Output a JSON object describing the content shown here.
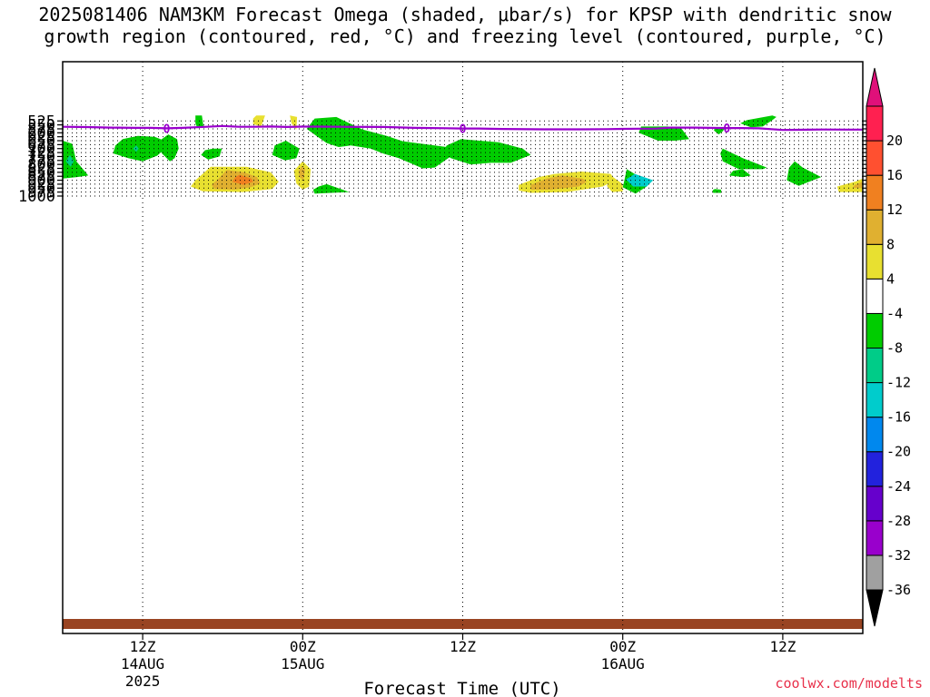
{
  "title": {
    "line1": "2025081406 NAM3KM Forecast Omega (shaded, μbar/s) for KPSP with dendritic snow",
    "line2": "growth region (contoured, red, °C) and freezing level (contoured, purple, °C)"
  },
  "credit": "coolwx.com/modelts",
  "chart_data": {
    "type": "heatmap",
    "xlabel": "Forecast Time (UTC)",
    "ylabel": "",
    "y_scale": "pressure (hPa), reversed",
    "y_ticks": [
      525,
      550,
      575,
      600,
      625,
      650,
      675,
      700,
      725,
      750,
      775,
      800,
      825,
      850,
      875,
      900,
      925,
      950,
      975,
      1000
    ],
    "x_hours_range": [
      -10,
      90
    ],
    "x_ticks": [
      {
        "hour": 0,
        "label": "12Z",
        "sublabel": "14AUG",
        "year": "2025"
      },
      {
        "hour": 20,
        "label": "00Z",
        "sublabel": "15AUG",
        "year": ""
      },
      {
        "hour": 40,
        "label": "12Z",
        "sublabel": "",
        "year": ""
      },
      {
        "hour": 60,
        "label": "00Z",
        "sublabel": "16AUG",
        "year": ""
      },
      {
        "hour": 80,
        "label": "12Z",
        "sublabel": "",
        "year": ""
      }
    ],
    "grid": true,
    "colorbar": {
      "position": "right",
      "boundaries": [
        -36,
        -32,
        -28,
        -24,
        -20,
        -16,
        -12,
        -8,
        -4,
        4,
        8,
        12,
        16,
        20
      ],
      "colors": [
        "#a0a0a0",
        "#9900cc",
        "#6600cc",
        "#2222dd",
        "#0088ee",
        "#00cccc",
        "#00cc88",
        "#00cc00",
        "#ffffff",
        "#e8e030",
        "#e0b030",
        "#f08020",
        "#ff5030",
        "#ff2050"
      ],
      "under_color": "#000000",
      "over_color": "#e0107a"
    },
    "freezing_level": {
      "label": "0",
      "color": "#9900cc",
      "x": [
        -10,
        -7,
        -4,
        -1,
        1,
        3,
        5,
        8,
        10,
        12,
        14,
        16,
        18,
        20,
        22,
        25,
        30,
        34,
        38,
        40,
        42,
        45,
        50,
        55,
        58,
        60,
        62,
        64,
        66,
        69,
        71,
        73,
        75,
        77,
        80,
        82,
        85,
        88,
        90
      ],
      "pressure": [
        562,
        564,
        567,
        569,
        569,
        572,
        569,
        562,
        557,
        562,
        562,
        560,
        563,
        561,
        561,
        562,
        563,
        569,
        571,
        573,
        573,
        576,
        578,
        578,
        577,
        575,
        574,
        574,
        567,
        567,
        569,
        570,
        570,
        572,
        582,
        581,
        579,
        580,
        580
      ]
    },
    "omega_regions": [
      {
        "value_range": [
          -8,
          -4
        ],
        "outline": [
          [
            6.6,
            490
          ],
          [
            7.4,
            490
          ],
          [
            7.6,
            562
          ],
          [
            6.8,
            566
          ],
          [
            6.6,
            540
          ]
        ]
      },
      {
        "value_range": [
          -8,
          -4
        ],
        "outline": [
          [
            24.2,
            500
          ],
          [
            27.5,
            580
          ],
          [
            30.5,
            620
          ],
          [
            32.5,
            653
          ],
          [
            38,
            690
          ],
          [
            38.5,
            750
          ],
          [
            36.5,
            820
          ],
          [
            35,
            825
          ],
          [
            32,
            760
          ],
          [
            30,
            730
          ],
          [
            28.5,
            700
          ],
          [
            26,
            680
          ],
          [
            24.5,
            690
          ],
          [
            23,
            665
          ],
          [
            22,
            630
          ],
          [
            20.5,
            575
          ],
          [
            21.5,
            510
          ]
        ]
      },
      {
        "value_range": [
          -8,
          -4
        ],
        "outline": [
          [
            -0.6,
            620
          ],
          [
            1.5,
            625
          ],
          [
            2.5,
            645
          ],
          [
            2.8,
            700
          ],
          [
            1.8,
            745
          ],
          [
            0,
            780
          ],
          [
            -1.8,
            760
          ],
          [
            -3.7,
            730
          ],
          [
            -3.4,
            680
          ],
          [
            -2.5,
            640
          ]
        ]
      },
      {
        "value_range": [
          -8,
          -4
        ],
        "outline": [
          [
            3.2,
            610
          ],
          [
            4.3,
            640
          ],
          [
            4.5,
            700
          ],
          [
            4.0,
            760
          ],
          [
            3.4,
            780
          ],
          [
            2.4,
            730
          ],
          [
            2.0,
            680
          ],
          [
            2.4,
            640
          ]
        ]
      },
      {
        "value_range": [
          -8,
          -4
        ],
        "outline": [
          [
            -10,
            650
          ],
          [
            -8.8,
            670
          ],
          [
            -8.3,
            780
          ],
          [
            -7.8,
            810
          ],
          [
            -6.8,
            870
          ],
          [
            -8.2,
            880
          ],
          [
            -10,
            890
          ]
        ]
      },
      {
        "value_range": [
          -8,
          -4
        ],
        "outline": [
          [
            8.8,
            700
          ],
          [
            9.9,
            700
          ],
          [
            9.6,
            750
          ],
          [
            8.2,
            770
          ],
          [
            7.3,
            740
          ],
          [
            7.8,
            710
          ]
        ]
      },
      {
        "value_range": [
          -8,
          -4
        ],
        "outline": [
          [
            17.9,
            650
          ],
          [
            19.6,
            700
          ],
          [
            19.2,
            760
          ],
          [
            17.8,
            775
          ],
          [
            16.2,
            740
          ],
          [
            16.5,
            680
          ]
        ]
      },
      {
        "value_range": [
          -8,
          -4
        ],
        "outline": [
          [
            39.8,
            640
          ],
          [
            44.5,
            660
          ],
          [
            47.5,
            700
          ],
          [
            48.5,
            740
          ],
          [
            46,
            790
          ],
          [
            43.5,
            790
          ],
          [
            41,
            800
          ],
          [
            38.5,
            760
          ],
          [
            37.5,
            720
          ],
          [
            38,
            680
          ]
        ]
      },
      {
        "value_range": [
          -8,
          -4
        ],
        "outline": [
          [
            65.6,
            560
          ],
          [
            67.3,
            570
          ],
          [
            68.3,
            640
          ],
          [
            66.5,
            650
          ],
          [
            64.4,
            650
          ],
          [
            62,
            600
          ],
          [
            62.3,
            560
          ]
        ]
      },
      {
        "value_range": [
          -8,
          -4
        ],
        "outline": [
          [
            72,
            565
          ],
          [
            72.7,
            575
          ],
          [
            72.5,
            590
          ],
          [
            72,
            610
          ],
          [
            71.4,
            585
          ],
          [
            71.5,
            570
          ]
        ]
      },
      {
        "value_range": [
          -8,
          -4
        ],
        "outline": [
          [
            78.7,
            490
          ],
          [
            79.2,
            500
          ],
          [
            78.7,
            520
          ],
          [
            77.5,
            560
          ],
          [
            76,
            565
          ],
          [
            74.7,
            540
          ],
          [
            75.5,
            520
          ]
        ]
      },
      {
        "value_range": [
          -8,
          -4
        ],
        "outline": [
          [
            72.5,
            700
          ],
          [
            75,
            760
          ],
          [
            78,
            820
          ],
          [
            77.5,
            830
          ],
          [
            74.5,
            830
          ],
          [
            72.5,
            780
          ],
          [
            72.2,
            730
          ]
        ]
      },
      {
        "value_range": [
          -8,
          -4
        ],
        "outline": [
          [
            75,
            830
          ],
          [
            76,
            870
          ],
          [
            75,
            880
          ],
          [
            73.3,
            870
          ],
          [
            73.8,
            840
          ]
        ]
      },
      {
        "value_range": [
          -8,
          -4
        ],
        "outline": [
          [
            81.5,
            780
          ],
          [
            82.5,
            820
          ],
          [
            84.8,
            880
          ],
          [
            82,
            935
          ],
          [
            80.5,
            900
          ],
          [
            80.8,
            820
          ]
        ]
      },
      {
        "value_range": [
          -8,
          -4
        ],
        "outline": [
          [
            60.5,
            830
          ],
          [
            62.8,
            900
          ],
          [
            63,
            940
          ],
          [
            61.6,
            985
          ],
          [
            60,
            945
          ],
          [
            60.2,
            900
          ]
        ]
      },
      {
        "value_range": [
          -8,
          -4
        ],
        "outline": [
          [
            23,
            925
          ],
          [
            25,
            960
          ],
          [
            25.8,
            975
          ],
          [
            23.5,
            980
          ],
          [
            21.5,
            985
          ],
          [
            21.3,
            960
          ],
          [
            22,
            940
          ]
        ]
      },
      {
        "value_range": [
          -8,
          -4
        ],
        "outline": [
          [
            71.5,
            955
          ],
          [
            72.3,
            960
          ],
          [
            72.3,
            980
          ],
          [
            71.3,
            980
          ],
          [
            71.2,
            965
          ]
        ]
      },
      {
        "value_range": [
          -12,
          -8
        ],
        "outline": [
          [
            -0.8,
            680
          ],
          [
            -0.5,
            700
          ],
          [
            -0.8,
            720
          ],
          [
            -1.2,
            700
          ]
        ]
      },
      {
        "value_range": [
          -12,
          -8
        ],
        "outline": [
          [
            -9.1,
            740
          ],
          [
            -8.6,
            780
          ],
          [
            -9.0,
            815
          ],
          [
            -9.6,
            780
          ]
        ]
      },
      {
        "value_range": [
          -16,
          -12
        ],
        "outline": [
          [
            61.5,
            860
          ],
          [
            63.8,
            900
          ],
          [
            63,
            940
          ],
          [
            61.3,
            940
          ],
          [
            60.4,
            895
          ]
        ]
      },
      {
        "value_range": [
          4,
          8
        ],
        "outline": [
          [
            8.5,
            815
          ],
          [
            13,
            815
          ],
          [
            16,
            850
          ],
          [
            17,
            910
          ],
          [
            16.2,
            955
          ],
          [
            12.5,
            975
          ],
          [
            7.5,
            970
          ],
          [
            6,
            940
          ],
          [
            6.6,
            900
          ]
        ]
      },
      {
        "value_range": [
          4,
          8
        ],
        "outline": [
          [
            20,
            780
          ],
          [
            21,
            830
          ],
          [
            20.8,
            940
          ],
          [
            20,
            960
          ],
          [
            19.2,
            920
          ],
          [
            18.9,
            840
          ]
        ]
      },
      {
        "value_range": [
          4,
          8
        ],
        "outline": [
          [
            54.8,
            845
          ],
          [
            58.5,
            860
          ],
          [
            59,
            900
          ],
          [
            57.5,
            940
          ],
          [
            53,
            975
          ],
          [
            48.5,
            980
          ],
          [
            47,
            965
          ],
          [
            47,
            930
          ],
          [
            49.5,
            880
          ],
          [
            51.5,
            860
          ]
        ]
      },
      {
        "value_range": [
          4,
          8
        ],
        "outline": [
          [
            58.8,
            880
          ],
          [
            60,
            925
          ],
          [
            60,
            970
          ],
          [
            58.7,
            975
          ],
          [
            58,
            935
          ]
        ]
      },
      {
        "value_range": [
          4,
          8
        ],
        "outline": [
          [
            90,
            890
          ],
          [
            90,
            975
          ],
          [
            87,
            975
          ],
          [
            86.8,
            940
          ],
          [
            89,
            910
          ]
        ]
      },
      {
        "value_range": [
          4,
          8
        ],
        "outline": [
          [
            14.2,
            490
          ],
          [
            15.3,
            490
          ],
          [
            14.8,
            560
          ],
          [
            13.8,
            545
          ],
          [
            13.8,
            510
          ]
        ]
      },
      {
        "value_range": [
          4,
          8
        ],
        "outline": [
          [
            18.4,
            490
          ],
          [
            19.3,
            500
          ],
          [
            19.2,
            580
          ],
          [
            18.6,
            540
          ]
        ]
      },
      {
        "value_range": [
          4,
          8
        ],
        "outline": [
          [
            10.2,
            940
          ],
          [
            11.5,
            945
          ],
          [
            10.5,
            960
          ],
          [
            9.2,
            955
          ]
        ]
      },
      {
        "value_range": [
          8,
          12
        ],
        "outline": [
          [
            10.5,
            835
          ],
          [
            12.7,
            850
          ],
          [
            14.3,
            880
          ],
          [
            14.7,
            920
          ],
          [
            13.5,
            945
          ],
          [
            11.5,
            960
          ],
          [
            9,
            955
          ],
          [
            8.6,
            930
          ],
          [
            9.5,
            890
          ]
        ]
      },
      {
        "value_range": [
          8,
          12
        ],
        "outline": [
          [
            19.9,
            810
          ],
          [
            20.3,
            830
          ],
          [
            20.1,
            900
          ],
          [
            19.6,
            880
          ],
          [
            19.5,
            840
          ]
        ]
      },
      {
        "value_range": [
          8,
          12
        ],
        "outline": [
          [
            52.4,
            870
          ],
          [
            55,
            890
          ],
          [
            55.5,
            910
          ],
          [
            54.5,
            940
          ],
          [
            51,
            960
          ],
          [
            48.5,
            960
          ],
          [
            48.5,
            930
          ],
          [
            50.5,
            890
          ]
        ]
      },
      {
        "value_range": [
          8,
          12
        ],
        "outline": [
          [
            90,
            910
          ],
          [
            90,
            950
          ],
          [
            88.7,
            950
          ],
          [
            89,
            930
          ]
        ]
      },
      {
        "value_range": [
          12,
          16
        ],
        "outline": [
          [
            12.1,
            865
          ],
          [
            13.6,
            890
          ],
          [
            13.8,
            910
          ],
          [
            12.6,
            930
          ],
          [
            11.2,
            910
          ],
          [
            11.6,
            880
          ]
        ]
      }
    ]
  }
}
